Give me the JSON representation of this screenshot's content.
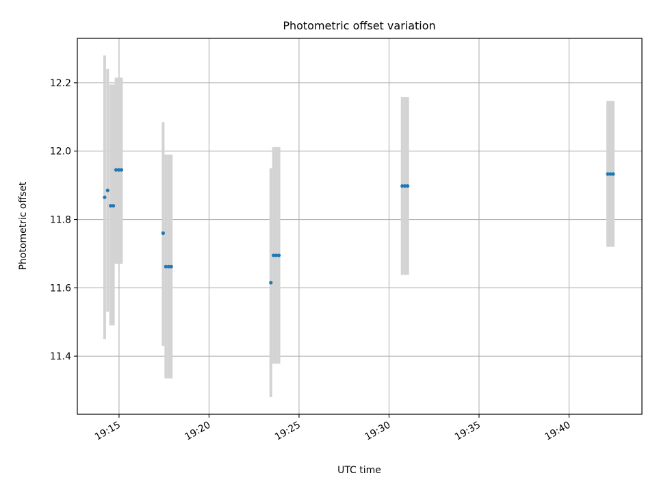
{
  "chart_data": {
    "type": "scatter",
    "title": "Photometric offset variation",
    "xlabel": "UTC time",
    "ylabel": "Photometric offset",
    "x_ticks": [
      "19:15",
      "19:20",
      "19:25",
      "19:30",
      "19:35",
      "19:40"
    ],
    "y_ticks": [
      "11.4",
      "11.6",
      "11.8",
      "12.0",
      "12.2"
    ],
    "xlim": [
      "19:12:41",
      "19:44:03"
    ],
    "ylim": [
      11.23,
      12.33
    ],
    "grid": true,
    "marker_color": "#1f77b4",
    "errorbar_color": "#d3d3d3",
    "points": [
      {
        "t": "19:14:12",
        "y": 11.865,
        "lo": 11.45,
        "hi": 12.28
      },
      {
        "t": "19:14:22",
        "y": 11.885,
        "lo": 11.53,
        "hi": 12.24
      },
      {
        "t": "19:14:32",
        "y": 11.84,
        "lo": 11.49,
        "hi": 12.195
      },
      {
        "t": "19:14:41",
        "y": 11.84,
        "lo": 11.49,
        "hi": 12.195
      },
      {
        "t": "19:14:50",
        "y": 11.945,
        "lo": 11.67,
        "hi": 12.215
      },
      {
        "t": "19:14:59",
        "y": 11.945,
        "lo": 11.67,
        "hi": 12.215
      },
      {
        "t": "19:15:08",
        "y": 11.945,
        "lo": 11.67,
        "hi": 12.215
      },
      {
        "t": "19:17:27",
        "y": 11.76,
        "lo": 11.43,
        "hi": 12.085
      },
      {
        "t": "19:17:36",
        "y": 11.662,
        "lo": 11.335,
        "hi": 11.99
      },
      {
        "t": "19:17:45",
        "y": 11.662,
        "lo": 11.335,
        "hi": 11.99
      },
      {
        "t": "19:17:54",
        "y": 11.662,
        "lo": 11.335,
        "hi": 11.99
      },
      {
        "t": "19:23:26",
        "y": 11.615,
        "lo": 11.28,
        "hi": 11.95
      },
      {
        "t": "19:23:35",
        "y": 11.695,
        "lo": 11.378,
        "hi": 12.012
      },
      {
        "t": "19:23:44",
        "y": 11.695,
        "lo": 11.378,
        "hi": 12.012
      },
      {
        "t": "19:23:53",
        "y": 11.695,
        "lo": 11.378,
        "hi": 12.012
      },
      {
        "t": "19:30:44",
        "y": 11.898,
        "lo": 11.638,
        "hi": 12.158
      },
      {
        "t": "19:30:53",
        "y": 11.898,
        "lo": 11.638,
        "hi": 12.158
      },
      {
        "t": "19:31:02",
        "y": 11.898,
        "lo": 11.638,
        "hi": 12.158
      },
      {
        "t": "19:42:09",
        "y": 11.933,
        "lo": 11.72,
        "hi": 12.147
      },
      {
        "t": "19:42:18",
        "y": 11.933,
        "lo": 11.72,
        "hi": 12.147
      },
      {
        "t": "19:42:27",
        "y": 11.933,
        "lo": 11.72,
        "hi": 12.147
      }
    ]
  }
}
